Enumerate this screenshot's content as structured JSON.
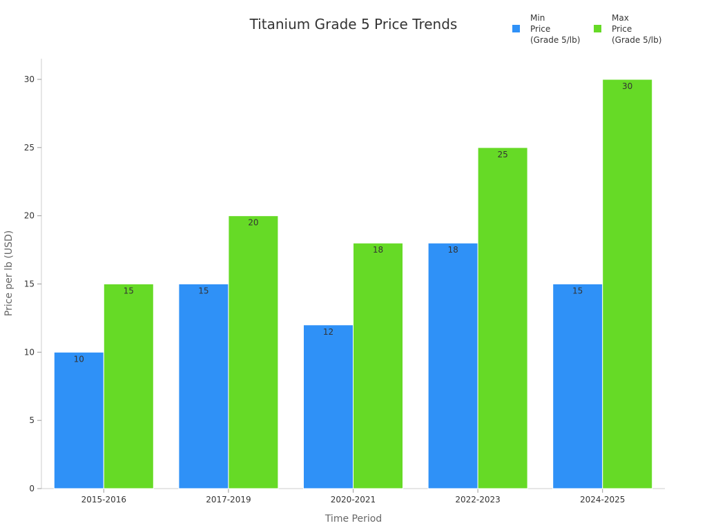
{
  "chart_data": {
    "type": "bar",
    "title": "Titanium Grade 5 Price Trends",
    "xlabel": "Time Period",
    "ylabel": "Price per lb (USD)",
    "ylim": [
      0,
      31.5
    ],
    "yticks": [
      0,
      5,
      10,
      15,
      20,
      25,
      30
    ],
    "categories": [
      "2015-2016",
      "2017-2019",
      "2020-2021",
      "2022-2023",
      "2024-2025"
    ],
    "series": [
      {
        "name": "Min Price (Grade 5/lb)",
        "legend_lines": [
          "Min",
          "Price",
          "(Grade 5/lb)"
        ],
        "color": "#2f91f7",
        "values": [
          10,
          15,
          12,
          18,
          15
        ]
      },
      {
        "name": "Max Price (Grade 5/lb)",
        "legend_lines": [
          "Max",
          "Price",
          "(Grade 5/lb)"
        ],
        "color": "#66da26",
        "values": [
          15,
          20,
          18,
          25,
          30
        ]
      }
    ],
    "legend_position": "top-right",
    "grid": false
  }
}
